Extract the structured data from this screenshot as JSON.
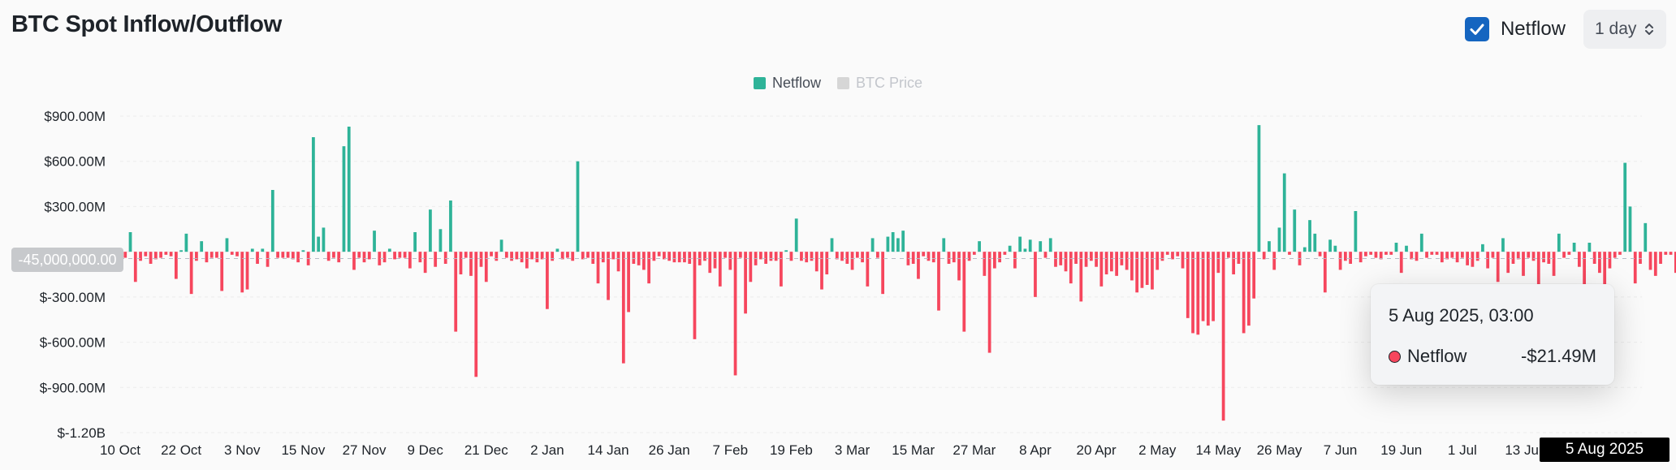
{
  "header": {
    "title": "BTC Spot Inflow/Outflow"
  },
  "controls": {
    "netflow_label": "Netflow",
    "netflow_checked": true,
    "interval_value": "1 day"
  },
  "legend": [
    {
      "label": "Netflow",
      "color": "#2eb398",
      "active": true
    },
    {
      "label": "BTC Price",
      "color": "#d6d6d6",
      "active": false
    }
  ],
  "crosshair": {
    "value_label": "-45,000,000.00",
    "date_label": "5 Aug 2025"
  },
  "tooltip": {
    "date": "5 Aug 2025, 03:00",
    "series": "Netflow",
    "value": "-$21.49M"
  },
  "chart_data": {
    "type": "bar",
    "title": "BTC Spot Inflow/Outflow",
    "unit": "USD",
    "ylim": [
      -1200000000,
      900000000
    ],
    "y_ticks": [
      900000000,
      600000000,
      300000000,
      0,
      -300000000,
      -600000000,
      -900000000,
      -1200000000
    ],
    "y_tick_labels": [
      "$900.00M",
      "$600.00M",
      "$300.00M",
      "",
      "$-300.00M",
      "$-600.00M",
      "$-900.00M",
      "$-1.20B"
    ],
    "x_tick_labels": [
      "10 Oct",
      "22 Oct",
      "3 Nov",
      "15 Nov",
      "27 Nov",
      "9 Dec",
      "21 Dec",
      "2 Jan",
      "14 Jan",
      "26 Jan",
      "7 Feb",
      "19 Feb",
      "3 Mar",
      "15 Mar",
      "27 Mar",
      "8 Apr",
      "20 Apr",
      "2 May",
      "14 May",
      "26 May",
      "7 Jun",
      "19 Jun",
      "1 Jul",
      "13 Jul"
    ],
    "start_date": "2024-10-10",
    "end_date": "2025-08-05",
    "colors": {
      "positive": "#2eb398",
      "negative": "#f6465d"
    },
    "grid": true,
    "values": [
      -30,
      -40,
      130,
      -200,
      -60,
      -30,
      -80,
      -50,
      -40,
      -20,
      -30,
      -180,
      10,
      120,
      -280,
      -60,
      70,
      -70,
      -40,
      -40,
      -260,
      90,
      -20,
      -30,
      -270,
      -250,
      20,
      -80,
      20,
      -100,
      410,
      -40,
      -40,
      -40,
      -50,
      -70,
      10,
      -90,
      760,
      100,
      160,
      -60,
      -40,
      -70,
      700,
      830,
      -120,
      -40,
      -70,
      -50,
      140,
      -90,
      -70,
      20,
      -50,
      -40,
      -40,
      -110,
      130,
      -70,
      -140,
      280,
      -100,
      150,
      -80,
      340,
      -530,
      -150,
      -40,
      -160,
      -830,
      -100,
      -200,
      -30,
      -60,
      80,
      -40,
      -60,
      -50,
      -70,
      -110,
      -50,
      -70,
      -50,
      -380,
      -60,
      20,
      -50,
      -40,
      -60,
      600,
      -50,
      -40,
      -80,
      -210,
      -70,
      -320,
      -50,
      -130,
      -740,
      -400,
      -80,
      -90,
      -120,
      -210,
      -60,
      -30,
      -50,
      -60,
      -70,
      -70,
      -70,
      -80,
      -580,
      -90,
      -60,
      -140,
      -110,
      -230,
      -40,
      -120,
      -820,
      -40,
      -410,
      -200,
      -90,
      -50,
      -80,
      -60,
      -60,
      -230,
      10,
      -60,
      220,
      -60,
      -70,
      -60,
      -130,
      -250,
      -150,
      90,
      -50,
      -60,
      -80,
      -120,
      -40,
      -70,
      -230,
      90,
      -40,
      -280,
      100,
      130,
      90,
      140,
      -90,
      -80,
      -180,
      -30,
      -60,
      -70,
      -390,
      90,
      -80,
      -70,
      -190,
      -530,
      -60,
      -20,
      70,
      -160,
      -670,
      -110,
      -70,
      -20,
      40,
      -110,
      100,
      20,
      80,
      -300,
      70,
      -40,
      90,
      -100,
      -90,
      -130,
      -210,
      -80,
      -330,
      -100,
      -60,
      -100,
      -230,
      -150,
      -130,
      -160,
      -90,
      -120,
      -190,
      -270,
      -240,
      -220,
      -250,
      -120,
      -60,
      -20,
      -50,
      -30,
      -110,
      -440,
      -540,
      -550,
      -460,
      -490,
      -460,
      -140,
      -1120,
      -40,
      -150,
      -80,
      -540,
      -490,
      -310,
      840,
      -50,
      70,
      -120,
      160,
      520,
      -20,
      280,
      -90,
      30,
      210,
      120,
      -30,
      -270,
      80,
      40,
      -120,
      -60,
      -80,
      270,
      -70,
      -30,
      -20,
      -40,
      -50,
      -20,
      -20,
      60,
      -140,
      40,
      -50,
      -60,
      120,
      -40,
      -20,
      -20,
      -70,
      -50,
      -40,
      -70,
      -40,
      -90,
      -100,
      -60,
      50,
      -110,
      -40,
      -200,
      90,
      -140,
      -80,
      -50,
      -160,
      -40,
      -60,
      -560,
      -70,
      -80,
      -160,
      120,
      -40,
      -20,
      60,
      -100,
      -280,
      60,
      -80,
      -140,
      -720,
      -110,
      -40,
      -20,
      590,
      300,
      -210,
      -80,
      190,
      -120,
      -160,
      -80,
      -20,
      -20,
      -140,
      -120,
      -50,
      -110,
      -50,
      -60,
      -40,
      -50,
      -70,
      -150,
      -40,
      340,
      -80,
      420,
      -60,
      30,
      -370,
      -110,
      -160,
      -130,
      -90,
      -140,
      -160,
      -100,
      -140,
      -20,
      -20,
      -150,
      -150,
      -220,
      -80,
      -440,
      -80,
      -450,
      -50,
      -830,
      -40,
      -150,
      -200,
      -120,
      -550,
      -360,
      -70,
      -110,
      20,
      -140,
      -60,
      230,
      -140,
      -80,
      40,
      -40,
      30,
      -90,
      -40,
      -160,
      210,
      -40,
      -200,
      -60,
      -100,
      -230,
      -40,
      -40,
      -160,
      300,
      -50,
      -80,
      -140,
      -20,
      -40,
      -380,
      -60,
      330,
      -810,
      -80,
      -150,
      -50,
      -100,
      -100,
      -470,
      -200,
      -300,
      -50,
      -330,
      -190,
      -460,
      -90,
      -460,
      -40,
      -80,
      -40,
      -150,
      -80,
      -700,
      10,
      -60,
      -100,
      -50,
      -50,
      -40,
      -120,
      250,
      -80,
      -270,
      -140,
      -270,
      -60,
      -130,
      -180,
      -200,
      -40,
      -160,
      -50,
      -90,
      -220,
      -150,
      -60,
      -30,
      -150,
      -110,
      -80,
      -90,
      -240,
      90,
      -80,
      -110,
      -50,
      -40,
      -120,
      -90,
      -60,
      -100,
      120,
      -160,
      -110,
      -40,
      -100,
      130,
      -70,
      80,
      -60,
      -30,
      -130,
      20,
      -80,
      20,
      -80,
      100,
      -80,
      -60,
      -130,
      -120,
      -40,
      -60,
      -90,
      140,
      -30,
      -60,
      -30,
      20,
      -60,
      -40,
      250,
      -40,
      20,
      -70,
      -100,
      -130,
      -70,
      -40,
      -100,
      -80,
      -50,
      -220,
      -50,
      -70,
      100,
      -180,
      -60,
      -40,
      -80,
      -50,
      160,
      -80,
      170,
      -100,
      -220,
      100,
      -250,
      -60,
      120,
      -40,
      -40,
      -21.49
    ]
  }
}
